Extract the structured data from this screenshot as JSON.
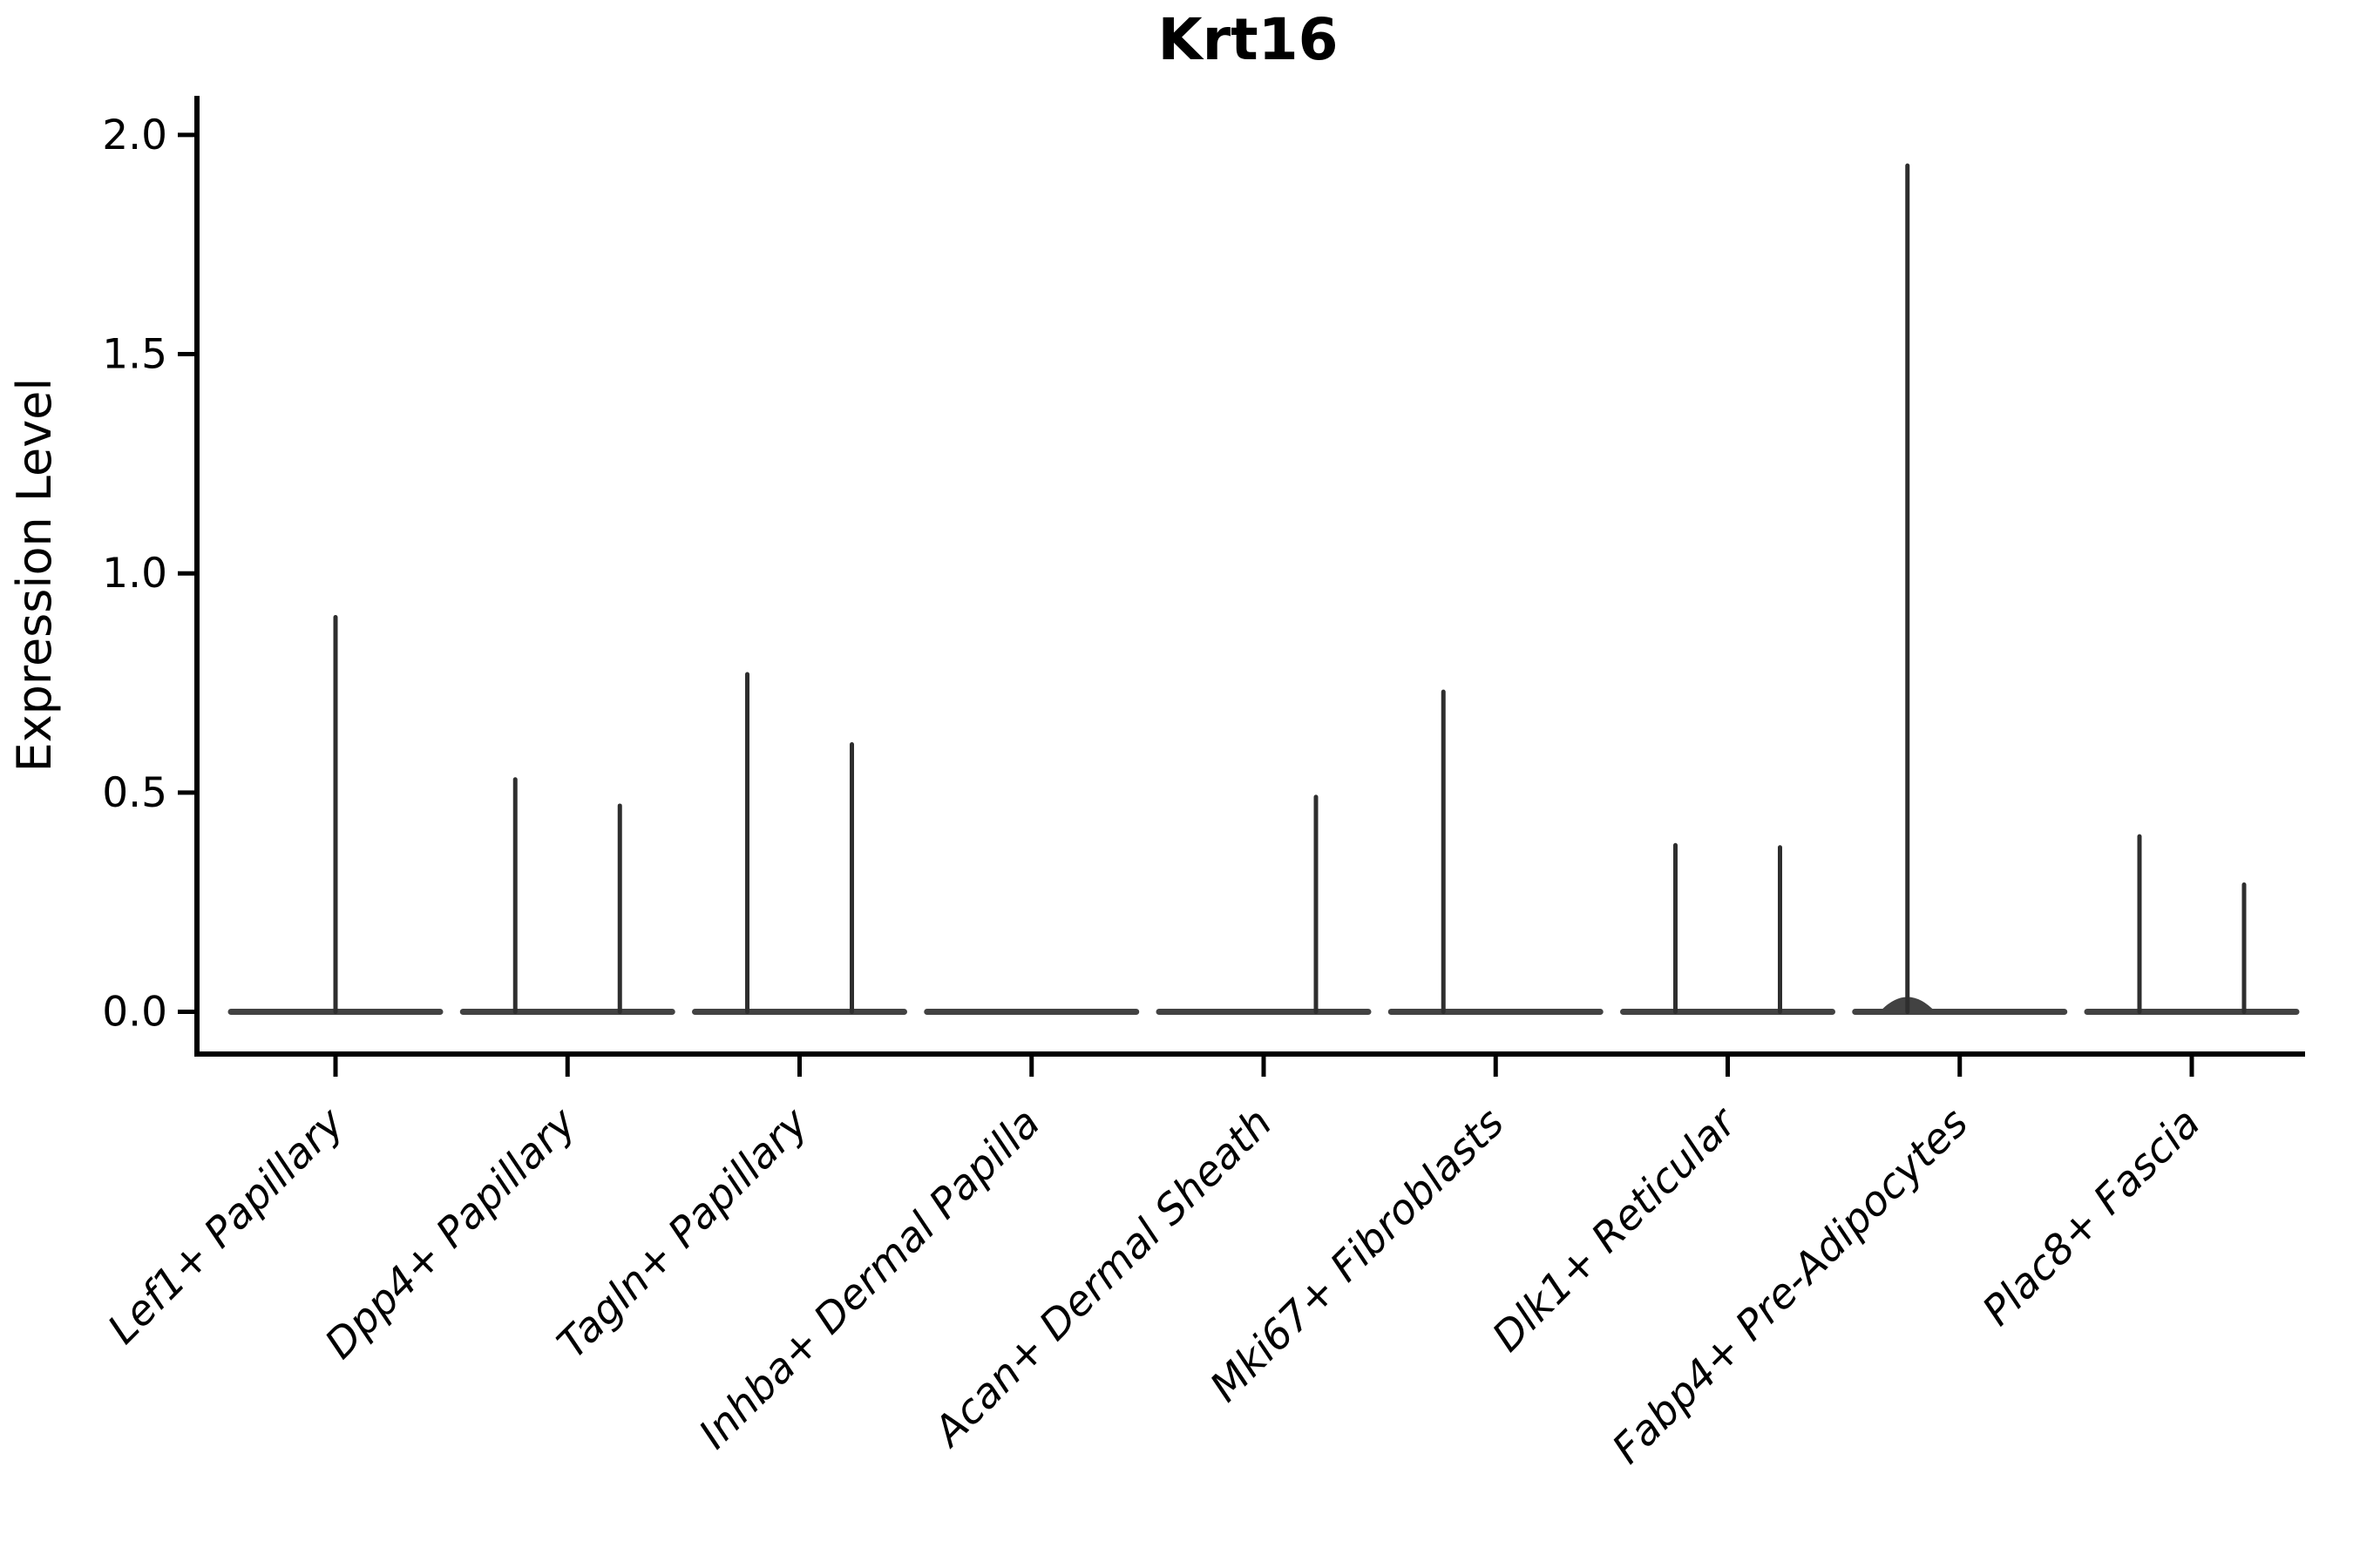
{
  "title": "Krt16",
  "y_axis": {
    "label": "Expression Level",
    "tick_labels": [
      "2.0",
      "1.5",
      "1.0",
      "0.5",
      "0.0"
    ]
  },
  "colors": {
    "spine": "#000000",
    "violin_line": "#2e2e2e",
    "baseline_line": "#424242",
    "text": "#000000",
    "background": "#ffffff"
  },
  "chart_data": {
    "type": "violin",
    "title": "Krt16",
    "xlabel": "",
    "ylabel": "Expression Level",
    "ylim": [
      -0.1,
      2.09
    ],
    "yticks": [
      0.0,
      0.5,
      1.0,
      1.5,
      2.0
    ],
    "ytick_labels": [
      "0.0",
      "0.5",
      "1.0",
      "1.5",
      "2.0"
    ],
    "grid": false,
    "legend": "none",
    "xtick_rotation_deg": 45,
    "categories": [
      "Lef1+ Papillary",
      "Dpp4+ Papillary",
      "Tagln+ Papillary",
      "Inhba+ Dermal Papilla",
      "Acan+ Dermal Sheath",
      "Mki67+ Fibroblasts",
      "Dlk1+ Reticular",
      "Fabp4+ Pre-Adipocytes",
      "Plac8+ Fascia"
    ],
    "description": "Violin plot of Krt16 expression; each category shows a wide flat density at 0 with thin spikes up to the maximum expressed value. Spike slot -1 = left sub-violin, 0 = centered, 1 = right sub-violin.",
    "baseline_value": 0.0,
    "violins": [
      {
        "category": "Lef1+ Papillary",
        "spikes": [
          {
            "slot": 0,
            "max": 0.9
          }
        ]
      },
      {
        "category": "Dpp4+ Papillary",
        "spikes": [
          {
            "slot": -1,
            "max": 0.53
          },
          {
            "slot": 1,
            "max": 0.47
          }
        ]
      },
      {
        "category": "Tagln+ Papillary",
        "spikes": [
          {
            "slot": -1,
            "max": 0.77
          },
          {
            "slot": 1,
            "max": 0.61
          }
        ]
      },
      {
        "category": "Inhba+ Dermal Papilla",
        "spikes": []
      },
      {
        "category": "Acan+ Dermal Sheath",
        "spikes": [
          {
            "slot": 1,
            "max": 0.49
          }
        ]
      },
      {
        "category": "Mki67+ Fibroblasts",
        "spikes": [
          {
            "slot": -1,
            "max": 0.73
          }
        ]
      },
      {
        "category": "Dlk1+ Reticular",
        "spikes": [
          {
            "slot": -1,
            "max": 0.38
          },
          {
            "slot": 1,
            "max": 0.375
          }
        ]
      },
      {
        "category": "Fabp4+ Pre-Adipocytes",
        "spikes": [
          {
            "slot": -1,
            "max": 1.93,
            "base_mound": true
          }
        ]
      },
      {
        "category": "Plac8+ Fascia",
        "spikes": [
          {
            "slot": -1,
            "max": 0.4
          },
          {
            "slot": 1,
            "max": 0.29
          }
        ]
      }
    ]
  }
}
